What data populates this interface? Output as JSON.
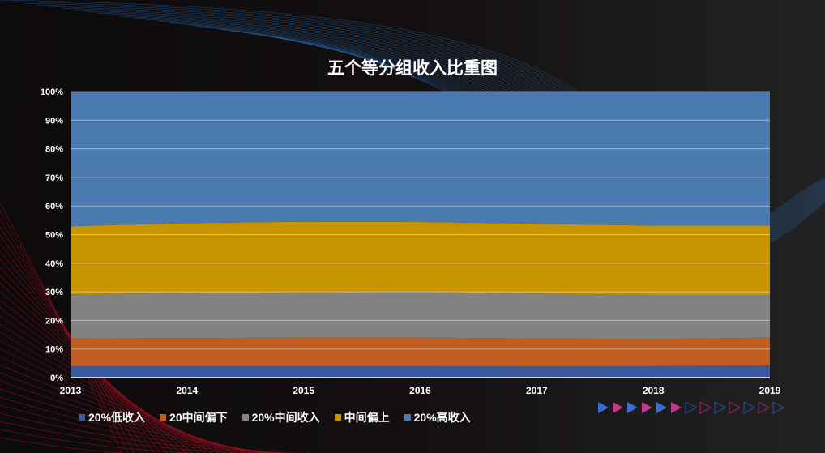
{
  "chart_data": {
    "type": "area",
    "stacked": "percent",
    "title": "五个等分组收入比重图",
    "categories": [
      "2013",
      "2014",
      "2015",
      "2016",
      "2017",
      "2018",
      "2019"
    ],
    "ylim": [
      0,
      100
    ],
    "yticks": [
      "0%",
      "10%",
      "20%",
      "30%",
      "40%",
      "50%",
      "60%",
      "70%",
      "80%",
      "90%",
      "100%"
    ],
    "grid": true,
    "legend": "bottom-left",
    "series": [
      {
        "name": "20%低收入",
        "color": "#3a5a9c",
        "values": [
          4.0,
          4.0,
          4.0,
          4.0,
          3.9,
          4.0,
          4.3
        ]
      },
      {
        "name": "20中间偏下",
        "color": "#c05e22",
        "values": [
          9.7,
          9.8,
          10.0,
          10.0,
          9.8,
          9.5,
          9.7
        ]
      },
      {
        "name": "20%中间收入",
        "color": "#828282",
        "values": [
          15.4,
          15.8,
          15.8,
          16.0,
          15.7,
          15.4,
          14.9
        ]
      },
      {
        "name": "中间偏上",
        "color": "#c79400",
        "values": [
          23.8,
          24.4,
          24.7,
          24.4,
          24.4,
          24.2,
          24.2
        ]
      },
      {
        "name": "20%高收入",
        "color": "#4a7ab0",
        "values": [
          47.1,
          46.0,
          45.5,
          45.6,
          46.2,
          46.9,
          46.9
        ]
      }
    ]
  }
}
